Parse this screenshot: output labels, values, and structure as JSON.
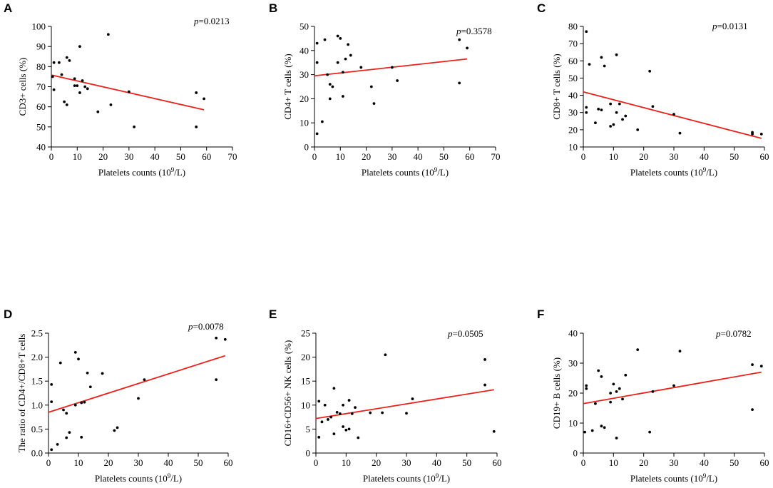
{
  "figure": {
    "background": "#ffffff",
    "point_color": "#000000",
    "fit_color": "#e8221c"
  },
  "chart_data": [
    {
      "type": "scatter",
      "panel": "A",
      "xlabel_main": "Platelets counts (10",
      "xlabel_sup": "9",
      "xlabel_tail": "/L)",
      "ylabel": "CD3+ cells (%)",
      "p_symbol": "p",
      "p_value": "=0.0213",
      "xlim": [
        0,
        70
      ],
      "ylim": [
        40,
        100
      ],
      "xticks": [
        0,
        10,
        20,
        30,
        40,
        50,
        60,
        70
      ],
      "yticks": [
        40,
        50,
        60,
        70,
        80,
        90,
        100
      ],
      "fit": {
        "x": [
          0,
          59
        ],
        "y": [
          75.8,
          58.5
        ]
      },
      "points": [
        [
          0.5,
          75
        ],
        [
          1,
          68.5
        ],
        [
          1,
          82
        ],
        [
          3,
          82
        ],
        [
          4,
          76
        ],
        [
          5,
          62.5
        ],
        [
          6,
          61
        ],
        [
          6,
          84.5
        ],
        [
          7,
          83
        ],
        [
          9,
          74
        ],
        [
          9,
          70.5
        ],
        [
          10,
          70.5
        ],
        [
          11,
          90
        ],
        [
          11,
          67
        ],
        [
          12,
          73
        ],
        [
          13,
          70
        ],
        [
          14,
          69
        ],
        [
          18,
          57.5
        ],
        [
          22,
          96
        ],
        [
          23,
          61
        ],
        [
          30,
          67.5
        ],
        [
          32,
          50
        ],
        [
          56,
          67
        ],
        [
          56,
          50
        ],
        [
          59,
          64
        ]
      ]
    },
    {
      "type": "scatter",
      "panel": "B",
      "xlabel_main": "Platelets counts (10",
      "xlabel_sup": "9",
      "xlabel_tail": "/L)",
      "ylabel": "CD4+ T cells (%)",
      "p_symbol": "p",
      "p_value": "=0.3578",
      "xlim": [
        0,
        70
      ],
      "ylim": [
        0,
        50
      ],
      "xticks": [
        0,
        10,
        20,
        30,
        40,
        50,
        60,
        70
      ],
      "yticks": [
        0,
        10,
        20,
        30,
        40,
        50
      ],
      "fit": {
        "x": [
          0,
          59
        ],
        "y": [
          29.5,
          36.5
        ]
      },
      "points": [
        [
          1,
          5.5
        ],
        [
          1,
          35
        ],
        [
          1,
          43
        ],
        [
          3,
          10.5
        ],
        [
          4,
          44.5
        ],
        [
          5,
          30
        ],
        [
          6,
          20
        ],
        [
          6,
          26
        ],
        [
          7,
          25
        ],
        [
          9,
          46
        ],
        [
          9,
          35
        ],
        [
          10,
          45
        ],
        [
          11,
          21
        ],
        [
          11,
          31
        ],
        [
          12,
          36.5
        ],
        [
          13,
          42.5
        ],
        [
          14,
          38
        ],
        [
          18,
          33
        ],
        [
          22,
          25
        ],
        [
          23,
          18
        ],
        [
          30,
          33
        ],
        [
          32,
          27.5
        ],
        [
          56,
          26.5
        ],
        [
          56,
          44.5
        ],
        [
          59,
          41
        ]
      ]
    },
    {
      "type": "scatter",
      "panel": "C",
      "xlabel_main": "Platelets counts (10",
      "xlabel_sup": "9",
      "xlabel_tail": "/L)",
      "ylabel": "CD8+ T cells (%)",
      "p_symbol": "p",
      "p_value": "=0.0131",
      "xlim": [
        0,
        60
      ],
      "ylim": [
        10,
        80
      ],
      "xticks": [
        0,
        10,
        20,
        30,
        40,
        50,
        60
      ],
      "yticks": [
        10,
        20,
        30,
        40,
        50,
        60,
        70,
        80
      ],
      "fit": {
        "x": [
          0,
          59
        ],
        "y": [
          42,
          15
        ]
      },
      "points": [
        [
          1,
          77
        ],
        [
          1,
          33
        ],
        [
          1,
          30
        ],
        [
          2,
          58
        ],
        [
          4,
          24
        ],
        [
          5,
          32
        ],
        [
          6,
          62
        ],
        [
          6,
          31.5
        ],
        [
          7,
          57
        ],
        [
          9,
          35
        ],
        [
          9,
          22
        ],
        [
          10,
          23
        ],
        [
          11,
          63.5
        ],
        [
          11,
          30
        ],
        [
          12,
          35
        ],
        [
          13,
          26
        ],
        [
          14,
          28
        ],
        [
          18,
          20
        ],
        [
          22,
          54
        ],
        [
          23,
          33.5
        ],
        [
          30,
          29
        ],
        [
          32,
          18
        ],
        [
          56,
          18.5
        ],
        [
          56,
          17.5
        ],
        [
          59,
          17.5
        ]
      ]
    },
    {
      "type": "scatter",
      "panel": "D",
      "xlabel_main": "Platelets counts (10",
      "xlabel_sup": "9",
      "xlabel_tail": "/L)",
      "ylabel": "The ratio of CD4+/CD8+T cells",
      "p_symbol": "p",
      "p_value": "=0.0078",
      "xlim": [
        0,
        60
      ],
      "ylim": [
        0,
        2.5
      ],
      "xticks": [
        0,
        10,
        20,
        30,
        40,
        50,
        60
      ],
      "yticks": [
        0,
        0.5,
        1.0,
        1.5,
        2.0,
        2.5
      ],
      "ytick_labels": [
        "0.0",
        "0.5",
        "1.0",
        "1.5",
        "2.0",
        "2.5"
      ],
      "fit": {
        "x": [
          0,
          59
        ],
        "y": [
          0.85,
          2.03
        ]
      },
      "points": [
        [
          1,
          0.07
        ],
        [
          1,
          1.43
        ],
        [
          1,
          1.07
        ],
        [
          3,
          0.18
        ],
        [
          4,
          1.88
        ],
        [
          5,
          0.9
        ],
        [
          6,
          0.32
        ],
        [
          6,
          0.83
        ],
        [
          7,
          0.43
        ],
        [
          9,
          2.1
        ],
        [
          9,
          1.0
        ],
        [
          10,
          1.96
        ],
        [
          11,
          0.33
        ],
        [
          11,
          1.05
        ],
        [
          12,
          1.06
        ],
        [
          13,
          1.67
        ],
        [
          14,
          1.38
        ],
        [
          18,
          1.66
        ],
        [
          22,
          0.47
        ],
        [
          23,
          0.53
        ],
        [
          30,
          1.14
        ],
        [
          32,
          1.53
        ],
        [
          56,
          1.53
        ],
        [
          56,
          2.4
        ],
        [
          59,
          2.37
        ]
      ]
    },
    {
      "type": "scatter",
      "panel": "E",
      "xlabel_main": "Platelets counts (10",
      "xlabel_sup": "9",
      "xlabel_tail": "/L)",
      "ylabel": "CD16+CD56+ NK cells (%)",
      "p_symbol": "p",
      "p_value": "=0.0505",
      "xlim": [
        0,
        60
      ],
      "ylim": [
        0,
        25
      ],
      "xticks": [
        0,
        10,
        20,
        30,
        40,
        50,
        60
      ],
      "yticks": [
        0,
        5,
        10,
        15,
        20,
        25
      ],
      "fit": {
        "x": [
          0,
          59
        ],
        "y": [
          7.2,
          13.2
        ]
      },
      "points": [
        [
          1,
          3.3
        ],
        [
          1,
          10.8
        ],
        [
          2,
          6.5
        ],
        [
          3,
          10
        ],
        [
          4,
          7
        ],
        [
          5,
          7.5
        ],
        [
          6,
          13.5
        ],
        [
          6,
          4
        ],
        [
          7,
          8.5
        ],
        [
          8,
          8.2
        ],
        [
          9,
          5.5
        ],
        [
          9,
          10
        ],
        [
          10,
          4.8
        ],
        [
          11,
          11
        ],
        [
          11,
          5
        ],
        [
          12,
          8.2
        ],
        [
          13,
          9.5
        ],
        [
          14,
          3.2
        ],
        [
          18,
          8.4
        ],
        [
          22,
          8.4
        ],
        [
          23,
          20.5
        ],
        [
          30,
          8.3
        ],
        [
          32,
          11.3
        ],
        [
          56,
          19.5
        ],
        [
          56,
          14.2
        ],
        [
          59,
          4.5
        ]
      ]
    },
    {
      "type": "scatter",
      "panel": "F",
      "xlabel_main": "Platelets counts (10",
      "xlabel_sup": "9",
      "xlabel_tail": "/L)",
      "ylabel": "CD19+ B cells (%)",
      "p_symbol": "p",
      "p_value": "=0.0782",
      "xlim": [
        0,
        60
      ],
      "ylim": [
        0,
        40
      ],
      "xticks": [
        0,
        10,
        20,
        30,
        40,
        50,
        60
      ],
      "yticks": [
        0,
        10,
        20,
        30,
        40
      ],
      "fit": {
        "x": [
          0,
          59
        ],
        "y": [
          16.5,
          27
        ]
      },
      "points": [
        [
          0.5,
          7
        ],
        [
          1,
          21.5
        ],
        [
          1,
          22.5
        ],
        [
          3,
          7.5
        ],
        [
          4,
          16.5
        ],
        [
          5,
          27.5
        ],
        [
          6,
          9
        ],
        [
          6,
          25.5
        ],
        [
          7,
          8.5
        ],
        [
          9,
          20
        ],
        [
          9,
          17
        ],
        [
          10,
          23
        ],
        [
          11,
          5
        ],
        [
          11,
          20.5
        ],
        [
          12,
          21.5
        ],
        [
          13,
          18
        ],
        [
          14,
          26
        ],
        [
          18,
          34.5
        ],
        [
          22,
          7
        ],
        [
          23,
          20.5
        ],
        [
          30,
          22.5
        ],
        [
          32,
          34
        ],
        [
          56,
          14.5
        ],
        [
          56,
          29.5
        ],
        [
          59,
          29
        ]
      ]
    }
  ]
}
